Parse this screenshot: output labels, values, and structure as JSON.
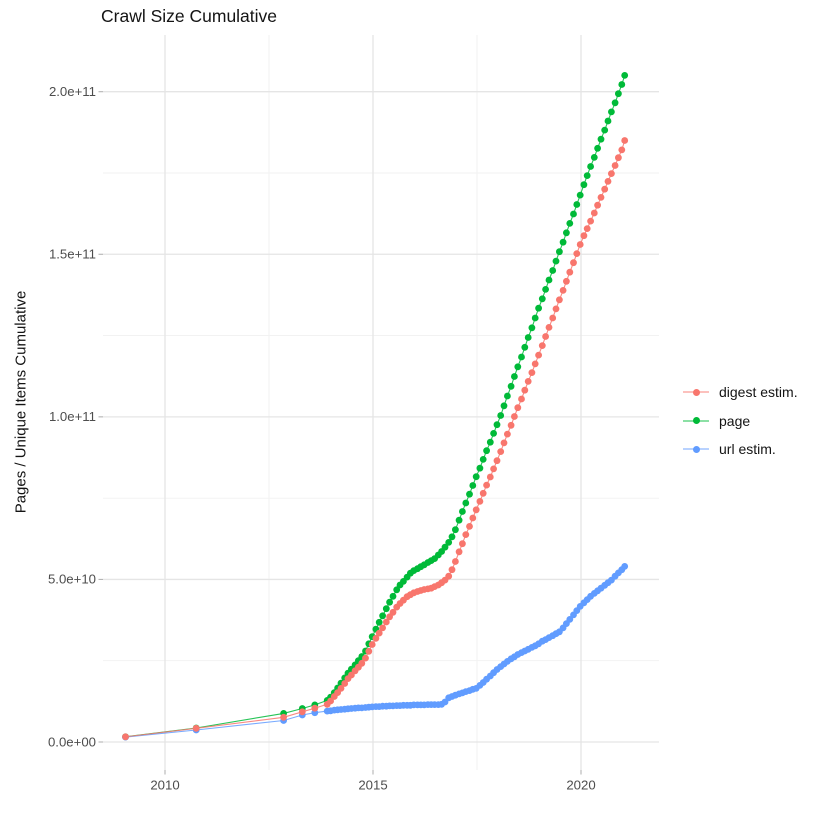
{
  "title": "Crawl Size Cumulative",
  "axes": {
    "x": {
      "tick_labels": [
        "2010",
        "2015",
        "2020"
      ],
      "tick_values": [
        2010,
        2015,
        2020
      ],
      "minor_values": [
        2012.5,
        2017.5
      ],
      "range": [
        2008.5,
        2021.9
      ]
    },
    "y": {
      "label": "Pages / Unique Items Cumulative",
      "tick_labels": [
        "0.0e+00",
        "5.0e+10",
        "1.0e+11",
        "1.5e+11",
        "2.0e+11"
      ],
      "tick_values_e9": [
        0,
        50,
        100,
        150,
        200
      ],
      "minor_values_e9": [
        25,
        75,
        125,
        175
      ],
      "range_e9": [
        -10.3,
        217.5
      ]
    }
  },
  "legend": {
    "items": [
      {
        "label": "digest estim.",
        "color": "#F8766D",
        "series": "digest estim."
      },
      {
        "label": "page",
        "color": "#00BA38",
        "series": "page"
      },
      {
        "label": "url estim.",
        "color": "#619CFF",
        "series": "url estim."
      }
    ]
  },
  "colors": {
    "background": "#ffffff",
    "grid_major": "#e5e5e5",
    "grid_minor": "#f1f1f1",
    "tick_mark": "#b3b3b3",
    "tick_label": "#4d4d4d",
    "text": "#141414",
    "digest_estim": "#F8766D",
    "page": "#00BA38",
    "url_estim": "#619CFF"
  },
  "chart_data": {
    "type": "scatter",
    "title": "Crawl Size Cumulative",
    "xlabel": "",
    "ylabel": "Pages / Unique Items Cumulative",
    "x_unit": "year (decimal)",
    "value_unit": "items, in units of 1e9 (multiply by 1e9)",
    "xlim": [
      2008.5,
      2021.9
    ],
    "ylim_e9": [
      -10.3,
      217.5
    ],
    "grid": true,
    "legend_position": "right",
    "draw_order": [
      "page",
      "url estim.",
      "digest estim."
    ],
    "series": [
      {
        "name": "page",
        "color": "#00BA38",
        "points": [
          [
            2009.05,
            1.6
          ],
          [
            2010.75,
            4.3
          ],
          [
            2012.85,
            8.8
          ],
          [
            2013.3,
            10.3
          ],
          [
            2013.6,
            11.4
          ],
          [
            2013.9,
            12.8
          ],
          [
            2013.98,
            13.8
          ],
          [
            2014.07,
            15.2
          ],
          [
            2014.15,
            16.6
          ],
          [
            2014.23,
            18.1
          ],
          [
            2014.32,
            19.7
          ],
          [
            2014.4,
            21.2
          ],
          [
            2014.48,
            22.4
          ],
          [
            2014.57,
            23.7
          ],
          [
            2014.65,
            25.0
          ],
          [
            2014.73,
            26.3
          ],
          [
            2014.82,
            28.0
          ],
          [
            2014.9,
            30.2
          ],
          [
            2014.98,
            32.4
          ],
          [
            2015.07,
            34.7
          ],
          [
            2015.15,
            36.8
          ],
          [
            2015.23,
            38.8
          ],
          [
            2015.32,
            41.0
          ],
          [
            2015.4,
            43.0
          ],
          [
            2015.48,
            44.8
          ],
          [
            2015.57,
            46.8
          ],
          [
            2015.65,
            48.3
          ],
          [
            2015.73,
            49.4
          ],
          [
            2015.82,
            50.7
          ],
          [
            2015.9,
            51.9
          ],
          [
            2015.98,
            52.7
          ],
          [
            2016.07,
            53.3
          ],
          [
            2016.15,
            53.9
          ],
          [
            2016.23,
            54.5
          ],
          [
            2016.32,
            55.2
          ],
          [
            2016.4,
            55.8
          ],
          [
            2016.48,
            56.4
          ],
          [
            2016.57,
            57.5
          ],
          [
            2016.65,
            58.6
          ],
          [
            2016.73,
            59.9
          ],
          [
            2016.82,
            61.4
          ],
          [
            2016.9,
            63.1
          ],
          [
            2016.98,
            65.3
          ],
          [
            2017.07,
            68.2
          ],
          [
            2017.15,
            70.9
          ],
          [
            2017.23,
            73.5
          ],
          [
            2017.32,
            76.2
          ],
          [
            2017.4,
            78.9
          ],
          [
            2017.48,
            81.6
          ],
          [
            2017.57,
            84.2
          ],
          [
            2017.65,
            86.9
          ],
          [
            2017.73,
            89.6
          ],
          [
            2017.82,
            92.2
          ],
          [
            2017.9,
            94.9
          ],
          [
            2017.98,
            97.6
          ],
          [
            2018.07,
            100.4
          ],
          [
            2018.15,
            103.4
          ],
          [
            2018.23,
            106.4
          ],
          [
            2018.32,
            109.4
          ],
          [
            2018.4,
            112.4
          ],
          [
            2018.48,
            115.4
          ],
          [
            2018.57,
            118.4
          ],
          [
            2018.65,
            121.4
          ],
          [
            2018.73,
            124.4
          ],
          [
            2018.82,
            127.4
          ],
          [
            2018.9,
            130.4
          ],
          [
            2018.98,
            133.4
          ],
          [
            2019.07,
            136.3
          ],
          [
            2019.15,
            139.2
          ],
          [
            2019.23,
            142.1
          ],
          [
            2019.32,
            145.0
          ],
          [
            2019.4,
            147.9
          ],
          [
            2019.48,
            150.8
          ],
          [
            2019.57,
            153.7
          ],
          [
            2019.65,
            156.6
          ],
          [
            2019.73,
            159.5
          ],
          [
            2019.82,
            162.4
          ],
          [
            2019.9,
            165.3
          ],
          [
            2019.98,
            168.2
          ],
          [
            2020.07,
            171.4
          ],
          [
            2020.15,
            174.2
          ],
          [
            2020.23,
            177.0
          ],
          [
            2020.32,
            179.8
          ],
          [
            2020.4,
            182.6
          ],
          [
            2020.48,
            185.4
          ],
          [
            2020.57,
            188.2
          ],
          [
            2020.65,
            191.0
          ],
          [
            2020.73,
            193.8
          ],
          [
            2020.82,
            196.6
          ],
          [
            2020.9,
            199.4
          ],
          [
            2020.98,
            202.2
          ],
          [
            2021.05,
            205.0
          ]
        ]
      },
      {
        "name": "url estim.",
        "color": "#619CFF",
        "points": [
          [
            2009.05,
            1.5
          ],
          [
            2010.75,
            3.7
          ],
          [
            2012.85,
            6.6
          ],
          [
            2013.3,
            8.3
          ],
          [
            2013.6,
            9.0
          ],
          [
            2013.9,
            9.5
          ],
          [
            2013.98,
            9.6
          ],
          [
            2014.07,
            9.8
          ],
          [
            2014.15,
            9.9
          ],
          [
            2014.23,
            10.0
          ],
          [
            2014.32,
            10.1
          ],
          [
            2014.4,
            10.2
          ],
          [
            2014.48,
            10.3
          ],
          [
            2014.57,
            10.4
          ],
          [
            2014.65,
            10.5
          ],
          [
            2014.73,
            10.5
          ],
          [
            2014.82,
            10.6
          ],
          [
            2014.9,
            10.7
          ],
          [
            2014.98,
            10.8
          ],
          [
            2015.07,
            10.9
          ],
          [
            2015.15,
            10.9
          ],
          [
            2015.23,
            11.0
          ],
          [
            2015.32,
            11.0
          ],
          [
            2015.4,
            11.1
          ],
          [
            2015.48,
            11.1
          ],
          [
            2015.57,
            11.2
          ],
          [
            2015.65,
            11.2
          ],
          [
            2015.73,
            11.3
          ],
          [
            2015.82,
            11.3
          ],
          [
            2015.9,
            11.3
          ],
          [
            2015.98,
            11.4
          ],
          [
            2016.07,
            11.4
          ],
          [
            2016.15,
            11.4
          ],
          [
            2016.23,
            11.4
          ],
          [
            2016.32,
            11.5
          ],
          [
            2016.4,
            11.5
          ],
          [
            2016.48,
            11.5
          ],
          [
            2016.57,
            11.5
          ],
          [
            2016.65,
            11.6
          ],
          [
            2016.73,
            12.3
          ],
          [
            2016.82,
            13.6
          ],
          [
            2016.9,
            14.0
          ],
          [
            2016.98,
            14.4
          ],
          [
            2017.07,
            14.8
          ],
          [
            2017.15,
            15.1
          ],
          [
            2017.23,
            15.5
          ],
          [
            2017.32,
            15.8
          ],
          [
            2017.4,
            16.2
          ],
          [
            2017.48,
            16.5
          ],
          [
            2017.57,
            17.4
          ],
          [
            2017.65,
            18.3
          ],
          [
            2017.73,
            19.3
          ],
          [
            2017.82,
            20.3
          ],
          [
            2017.9,
            21.3
          ],
          [
            2017.98,
            22.3
          ],
          [
            2018.07,
            23.2
          ],
          [
            2018.15,
            24.0
          ],
          [
            2018.23,
            24.8
          ],
          [
            2018.32,
            25.6
          ],
          [
            2018.4,
            26.2
          ],
          [
            2018.48,
            26.9
          ],
          [
            2018.57,
            27.5
          ],
          [
            2018.65,
            28.0
          ],
          [
            2018.73,
            28.5
          ],
          [
            2018.82,
            29.1
          ],
          [
            2018.9,
            29.6
          ],
          [
            2018.98,
            30.2
          ],
          [
            2019.07,
            31.0
          ],
          [
            2019.15,
            31.5
          ],
          [
            2019.23,
            32.1
          ],
          [
            2019.32,
            32.7
          ],
          [
            2019.4,
            33.3
          ],
          [
            2019.48,
            33.9
          ],
          [
            2019.57,
            35.1
          ],
          [
            2019.65,
            36.4
          ],
          [
            2019.73,
            37.7
          ],
          [
            2019.82,
            39.1
          ],
          [
            2019.9,
            40.4
          ],
          [
            2019.98,
            41.7
          ],
          [
            2020.07,
            42.8
          ],
          [
            2020.15,
            43.8
          ],
          [
            2020.23,
            44.8
          ],
          [
            2020.32,
            45.7
          ],
          [
            2020.4,
            46.5
          ],
          [
            2020.48,
            47.3
          ],
          [
            2020.57,
            48.2
          ],
          [
            2020.65,
            49.0
          ],
          [
            2020.73,
            49.8
          ],
          [
            2020.82,
            51.0
          ],
          [
            2020.9,
            52.0
          ],
          [
            2020.98,
            53.0
          ],
          [
            2021.05,
            54.0
          ]
        ]
      },
      {
        "name": "digest estim.",
        "color": "#F8766D",
        "points": [
          [
            2009.05,
            1.6
          ],
          [
            2010.75,
            4.2
          ],
          [
            2012.85,
            7.6
          ],
          [
            2013.3,
            9.3
          ],
          [
            2013.6,
            10.4
          ],
          [
            2013.9,
            11.6
          ],
          [
            2013.98,
            12.6
          ],
          [
            2014.07,
            14.0
          ],
          [
            2014.15,
            15.2
          ],
          [
            2014.23,
            16.5
          ],
          [
            2014.32,
            18.0
          ],
          [
            2014.4,
            19.5
          ],
          [
            2014.48,
            20.6
          ],
          [
            2014.57,
            21.9
          ],
          [
            2014.65,
            23.0
          ],
          [
            2014.73,
            24.2
          ],
          [
            2014.82,
            25.8
          ],
          [
            2014.9,
            27.9
          ],
          [
            2014.98,
            30.0
          ],
          [
            2015.07,
            31.9
          ],
          [
            2015.15,
            33.5
          ],
          [
            2015.23,
            35.1
          ],
          [
            2015.32,
            36.9
          ],
          [
            2015.4,
            38.5
          ],
          [
            2015.48,
            39.9
          ],
          [
            2015.57,
            41.5
          ],
          [
            2015.65,
            42.6
          ],
          [
            2015.73,
            43.6
          ],
          [
            2015.82,
            44.7
          ],
          [
            2015.9,
            45.3
          ],
          [
            2015.98,
            45.9
          ],
          [
            2016.07,
            46.3
          ],
          [
            2016.15,
            46.6
          ],
          [
            2016.23,
            46.9
          ],
          [
            2016.32,
            47.1
          ],
          [
            2016.4,
            47.3
          ],
          [
            2016.48,
            47.8
          ],
          [
            2016.57,
            48.3
          ],
          [
            2016.65,
            49.0
          ],
          [
            2016.73,
            49.8
          ],
          [
            2016.82,
            51.0
          ],
          [
            2016.9,
            53.0
          ],
          [
            2016.98,
            55.5
          ],
          [
            2017.07,
            58.5
          ],
          [
            2017.15,
            61.0
          ],
          [
            2017.23,
            63.8
          ],
          [
            2017.32,
            66.3
          ],
          [
            2017.4,
            68.9
          ],
          [
            2017.48,
            71.4
          ],
          [
            2017.57,
            74.0
          ],
          [
            2017.65,
            76.5
          ],
          [
            2017.73,
            79.0
          ],
          [
            2017.82,
            81.5
          ],
          [
            2017.9,
            84.0
          ],
          [
            2017.98,
            86.5
          ],
          [
            2018.07,
            89.3
          ],
          [
            2018.15,
            92.0
          ],
          [
            2018.23,
            94.7
          ],
          [
            2018.32,
            97.4
          ],
          [
            2018.4,
            100.1
          ],
          [
            2018.48,
            102.8
          ],
          [
            2018.57,
            105.5
          ],
          [
            2018.65,
            108.2
          ],
          [
            2018.73,
            110.9
          ],
          [
            2018.82,
            113.6
          ],
          [
            2018.9,
            116.3
          ],
          [
            2018.98,
            119.0
          ],
          [
            2019.07,
            121.9
          ],
          [
            2019.15,
            124.7
          ],
          [
            2019.23,
            127.5
          ],
          [
            2019.32,
            130.4
          ],
          [
            2019.4,
            133.2
          ],
          [
            2019.48,
            136.0
          ],
          [
            2019.57,
            138.9
          ],
          [
            2019.65,
            141.7
          ],
          [
            2019.73,
            144.5
          ],
          [
            2019.82,
            147.4
          ],
          [
            2019.9,
            150.2
          ],
          [
            2019.98,
            153.0
          ],
          [
            2020.07,
            155.7
          ],
          [
            2020.15,
            157.9
          ],
          [
            2020.23,
            160.2
          ],
          [
            2020.32,
            162.7
          ],
          [
            2020.4,
            165.1
          ],
          [
            2020.48,
            167.5
          ],
          [
            2020.57,
            170.0
          ],
          [
            2020.65,
            172.4
          ],
          [
            2020.73,
            174.8
          ],
          [
            2020.82,
            177.3
          ],
          [
            2020.9,
            179.7
          ],
          [
            2020.98,
            182.1
          ],
          [
            2021.05,
            185.0
          ]
        ]
      }
    ]
  }
}
